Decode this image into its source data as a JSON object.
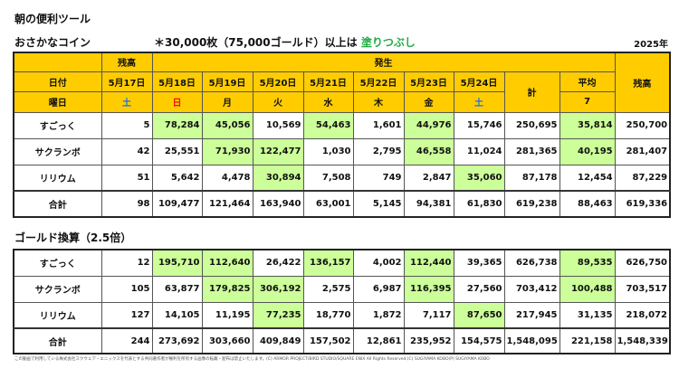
{
  "title": "朝の便利ツール",
  "subtitle": "おさかなコイン",
  "note_prefix": "＊30,000枚（75,000ゴールド）以上は",
  "note_highlight": "塗りつぶし",
  "year": "2025年",
  "colors": {
    "header": "#FFCC00",
    "highlight": "#CCFF99",
    "note": "#22AA44",
    "sunday": "#EE1111",
    "saturday": "#1A73D9"
  },
  "header": {
    "balance": "残高",
    "occurrence": "発生",
    "date_label": "日付",
    "weekday_label": "曜日",
    "total": "計",
    "average": "平均",
    "avg_days": "7",
    "dates": [
      "5月17日",
      "5月18日",
      "5月19日",
      "5月20日",
      "5月21日",
      "5月22日",
      "5月23日",
      "5月24日"
    ],
    "weekdays": [
      "土",
      "日",
      "月",
      "火",
      "水",
      "木",
      "金",
      "土"
    ]
  },
  "coins": [
    {
      "name": "すごっく",
      "values": [
        "5",
        "78,284",
        "45,056",
        "10,569",
        "54,463",
        "1,601",
        "44,976",
        "15,746",
        "250,695",
        "35,814",
        "250,700"
      ],
      "hl": [
        1,
        2,
        4,
        6,
        9
      ]
    },
    {
      "name": "サクランボ",
      "values": [
        "42",
        "25,551",
        "71,930",
        "122,477",
        "1,030",
        "2,795",
        "46,558",
        "11,024",
        "281,365",
        "40,195",
        "281,407"
      ],
      "hl": [
        2,
        3,
        6,
        9
      ]
    },
    {
      "name": "リリウム",
      "values": [
        "51",
        "5,642",
        "4,478",
        "30,894",
        "7,508",
        "749",
        "2,847",
        "35,060",
        "87,178",
        "12,454",
        "87,229"
      ],
      "hl": [
        3,
        7
      ]
    },
    {
      "name": "合計",
      "values": [
        "98",
        "109,477",
        "121,464",
        "163,940",
        "63,001",
        "5,145",
        "94,381",
        "61,830",
        "619,238",
        "88,463",
        "619,336"
      ],
      "hl": []
    }
  ],
  "gold_heading": "ゴールド換算（2.5倍）",
  "gold": [
    {
      "name": "すごっく",
      "values": [
        "12",
        "195,710",
        "112,640",
        "26,422",
        "136,157",
        "4,002",
        "112,440",
        "39,365",
        "626,738",
        "89,535",
        "626,750"
      ],
      "hl": [
        1,
        2,
        4,
        6,
        9
      ]
    },
    {
      "name": "サクランボ",
      "values": [
        "105",
        "63,877",
        "179,825",
        "306,192",
        "2,575",
        "6,987",
        "116,395",
        "27,560",
        "703,412",
        "100,488",
        "703,517"
      ],
      "hl": [
        2,
        3,
        6,
        9
      ]
    },
    {
      "name": "リリウム",
      "values": [
        "127",
        "14,105",
        "11,195",
        "77,235",
        "18,770",
        "1,872",
        "7,117",
        "87,650",
        "217,945",
        "31,135",
        "218,072"
      ],
      "hl": [
        3,
        7
      ]
    },
    {
      "name": "合計",
      "values": [
        "244",
        "273,692",
        "303,660",
        "409,849",
        "157,502",
        "12,861",
        "235,952",
        "154,575",
        "1,548,095",
        "221,158",
        "1,548,339"
      ],
      "hl": []
    }
  ],
  "footer": "この動画で利用している株式会社スクウェア・エニックスを代表とする共同著作者が権利を所有する画像の転載・配布は禁止いたします。(C) ARMOR PROJECT/BIRD STUDIO/SQUARE ENIX All Rights Reserved.(C) SUGIYAMA KOBO(P) SUGIYAMA KOBO"
}
